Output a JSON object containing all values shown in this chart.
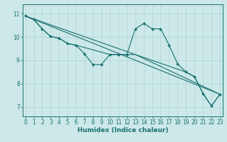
{
  "xlabel": "Humidex (Indice chaleur)",
  "xlim": [
    -0.3,
    23.3
  ],
  "ylim": [
    6.6,
    11.4
  ],
  "yticks": [
    7,
    8,
    9,
    10,
    11
  ],
  "xticks": [
    0,
    1,
    2,
    3,
    4,
    5,
    6,
    7,
    8,
    9,
    10,
    11,
    12,
    13,
    14,
    15,
    16,
    17,
    18,
    19,
    20,
    21,
    22,
    23
  ],
  "bg_color": "#cce8e8",
  "grid_color": "#b0d4d4",
  "line_color": "#1a7070",
  "line1_x": [
    0,
    1,
    2,
    3,
    4,
    5,
    6,
    7,
    8,
    9,
    10,
    11,
    12,
    13,
    14,
    15,
    16,
    17,
    18,
    19,
    20,
    21,
    22,
    23
  ],
  "line1_y": [
    10.9,
    10.75,
    10.35,
    10.02,
    9.95,
    9.72,
    9.65,
    9.28,
    8.82,
    8.82,
    9.25,
    9.25,
    9.25,
    10.35,
    10.58,
    10.35,
    10.35,
    9.65,
    8.85,
    8.5,
    8.3,
    7.58,
    7.05,
    7.55
  ],
  "line2_x": [
    0,
    1,
    2,
    3,
    4,
    5,
    6,
    7,
    10,
    11,
    12,
    13,
    19,
    20,
    21,
    22,
    23
  ],
  "line2_y": [
    10.9,
    10.75,
    10.35,
    10.02,
    9.95,
    9.72,
    9.65,
    9.55,
    9.25,
    9.25,
    9.25,
    9.25,
    8.5,
    8.3,
    7.58,
    7.05,
    7.55
  ],
  "line3_x": [
    0,
    13,
    23
  ],
  "line3_y": [
    10.9,
    9.25,
    7.55
  ],
  "line4_x": [
    0,
    23
  ],
  "line4_y": [
    10.9,
    7.55
  ],
  "xlabel_fontsize": 6.5,
  "tick_fontsize": 5.5
}
